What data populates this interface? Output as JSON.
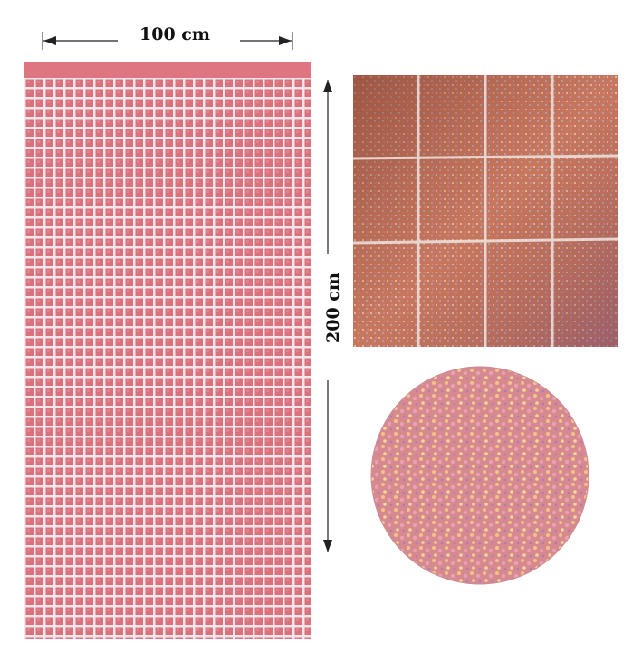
{
  "dimensions": {
    "width_label": "100 cm",
    "height_label": "200 cm"
  }
}
